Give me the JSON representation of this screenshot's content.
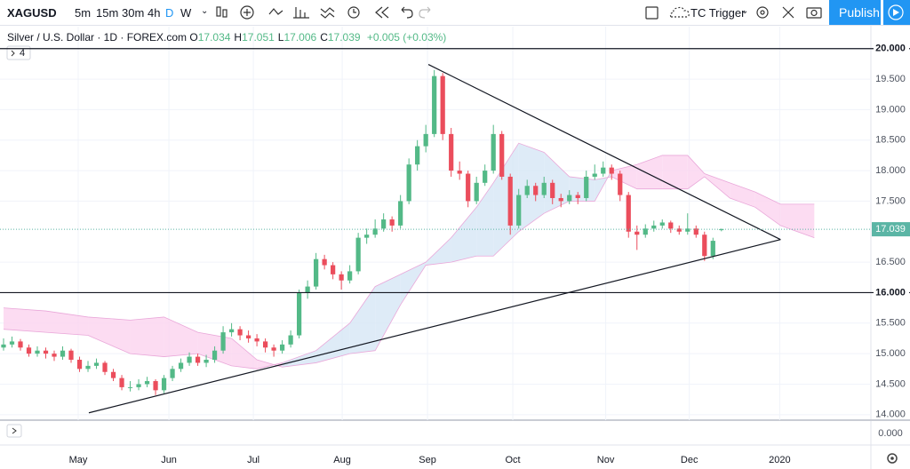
{
  "toolbar": {
    "symbol": "XAGUSD",
    "intervals": [
      "5m",
      "15m",
      "30m",
      "4h",
      "D",
      "W"
    ],
    "template": "TC Trigger",
    "publish": "Publish"
  },
  "legend": {
    "title": "Silver / U.S. Dollar · 1D · FOREX.com",
    "ohlc": [
      {
        "key": "O",
        "value": "17.034"
      },
      {
        "key": "H",
        "value": "17.051"
      },
      {
        "key": "L",
        "value": "17.006"
      },
      {
        "key": "C",
        "value": "17.039"
      }
    ],
    "change": "+0.005 (+0.03%)"
  },
  "pane_button": "4",
  "chart_data": {
    "type": "candlestick",
    "up_color": "#53b987",
    "down_color": "#eb4d5c",
    "open": [
      15.1,
      15.15,
      15.2,
      15.1,
      15.0,
      15.05,
      15.0,
      14.95,
      15.05,
      14.9,
      14.75,
      14.8,
      14.85,
      14.7,
      14.6,
      14.45,
      14.45,
      14.5,
      14.55,
      14.4,
      14.6,
      14.75,
      14.85,
      14.95,
      14.85,
      14.9,
      15.05,
      15.35,
      15.4,
      15.3,
      15.25,
      15.2,
      15.1,
      15.05,
      15.15,
      15.3,
      16.0,
      16.1,
      16.55,
      16.45,
      16.3,
      16.2,
      16.35,
      16.9,
      16.95,
      17.05,
      17.2,
      17.1,
      17.5,
      18.1,
      18.4,
      18.6,
      19.55,
      18.6,
      18.0,
      17.95,
      17.5,
      17.8,
      18.0,
      18.6,
      17.9,
      17.1,
      17.6,
      17.75,
      17.6,
      17.8,
      17.55,
      17.5,
      17.6,
      17.55,
      17.9,
      17.95,
      18.05,
      17.95,
      17.6,
      17.0,
      16.95,
      17.05,
      17.1,
      17.15,
      17.05,
      17.0,
      17.05,
      16.95,
      16.6,
      17.034
    ],
    "high": [
      15.25,
      15.28,
      15.24,
      15.15,
      15.12,
      15.1,
      15.05,
      15.12,
      15.08,
      14.95,
      14.88,
      14.92,
      14.88,
      14.75,
      14.65,
      14.55,
      14.58,
      14.62,
      14.58,
      14.65,
      14.8,
      14.92,
      15.02,
      15.0,
      14.98,
      15.12,
      15.45,
      15.5,
      15.45,
      15.38,
      15.32,
      15.25,
      15.15,
      15.22,
      15.38,
      16.05,
      16.2,
      16.65,
      16.62,
      16.5,
      16.35,
      16.45,
      16.98,
      17.05,
      17.2,
      17.3,
      17.25,
      17.6,
      18.2,
      18.5,
      18.75,
      19.65,
      19.6,
      18.7,
      18.15,
      18.0,
      17.9,
      18.1,
      18.75,
      18.65,
      17.95,
      17.7,
      17.85,
      17.8,
      17.9,
      17.85,
      17.62,
      17.68,
      17.65,
      18.0,
      18.1,
      18.15,
      18.1,
      18.0,
      17.65,
      17.1,
      17.12,
      17.18,
      17.2,
      17.18,
      17.1,
      17.3,
      17.1,
      17.0,
      16.9,
      17.051
    ],
    "low": [
      15.05,
      15.1,
      15.05,
      14.95,
      14.95,
      14.92,
      14.88,
      14.9,
      14.85,
      14.7,
      14.7,
      14.75,
      14.65,
      14.55,
      14.4,
      14.38,
      14.4,
      14.45,
      14.32,
      14.35,
      14.55,
      14.7,
      14.8,
      14.8,
      14.78,
      14.85,
      15.0,
      15.28,
      15.22,
      15.18,
      15.12,
      15.02,
      14.95,
      15.0,
      15.1,
      15.25,
      15.9,
      16.05,
      16.38,
      16.22,
      16.05,
      16.15,
      16.3,
      16.8,
      16.9,
      17.0,
      17.0,
      17.05,
      17.45,
      18.0,
      18.3,
      18.55,
      18.5,
      17.9,
      17.85,
      17.4,
      17.45,
      17.75,
      17.95,
      17.85,
      16.95,
      17.05,
      17.55,
      17.5,
      17.55,
      17.45,
      17.4,
      17.45,
      17.45,
      17.5,
      17.85,
      17.9,
      17.85,
      17.5,
      16.9,
      16.7,
      16.9,
      17.0,
      17.05,
      16.98,
      16.95,
      16.95,
      16.9,
      16.52,
      16.55,
      17.006
    ],
    "close": [
      15.15,
      15.2,
      15.1,
      15.0,
      15.05,
      15.0,
      14.95,
      15.05,
      14.9,
      14.75,
      14.8,
      14.85,
      14.7,
      14.6,
      14.45,
      14.45,
      14.5,
      14.55,
      14.4,
      14.6,
      14.75,
      14.85,
      14.95,
      14.85,
      14.9,
      15.05,
      15.35,
      15.4,
      15.3,
      15.25,
      15.2,
      15.1,
      15.05,
      15.15,
      15.3,
      16.0,
      16.1,
      16.55,
      16.45,
      16.3,
      16.2,
      16.35,
      16.9,
      16.95,
      17.05,
      17.2,
      17.1,
      17.5,
      18.1,
      18.4,
      18.6,
      19.55,
      18.6,
      18.0,
      17.95,
      17.5,
      17.8,
      18.0,
      18.6,
      17.9,
      17.1,
      17.6,
      17.75,
      17.6,
      17.8,
      17.55,
      17.5,
      17.6,
      17.55,
      17.9,
      17.95,
      18.05,
      17.95,
      17.6,
      17.0,
      16.95,
      17.05,
      17.1,
      17.15,
      17.05,
      17.0,
      17.05,
      16.95,
      16.6,
      16.85,
      17.039
    ],
    "xlim": [
      -0.42,
      102.7
    ],
    "xticks": [
      {
        "value": 8.84,
        "label": "May"
      },
      {
        "value": 19.58,
        "label": "Jun"
      },
      {
        "value": 29.58,
        "label": "Jul"
      },
      {
        "value": 40.1,
        "label": "Aug"
      },
      {
        "value": 50.2,
        "label": "Sep"
      },
      {
        "value": 60.3,
        "label": "Oct"
      },
      {
        "value": 71.3,
        "label": "Nov"
      },
      {
        "value": 81.2,
        "label": "Dec"
      },
      {
        "value": 91.9,
        "label": "2020"
      }
    ],
    "ylim": [
      13.91,
      20.36
    ],
    "yticks": [
      {
        "value": 14,
        "label": "14.000"
      },
      {
        "value": 14.5,
        "label": "14.500"
      },
      {
        "value": 15,
        "label": "15.000"
      },
      {
        "value": 15.5,
        "label": "15.500"
      },
      {
        "value": 16.5,
        "label": "16.500"
      },
      {
        "value": 17.5,
        "label": "17.500"
      },
      {
        "value": 18,
        "label": "18.000"
      },
      {
        "value": 18.5,
        "label": "18.500"
      },
      {
        "value": 19,
        "label": "19.000"
      },
      {
        "value": 19.5,
        "label": "19.500"
      }
    ],
    "grid": true,
    "grid_color": "#f0f3fa",
    "hlines": [
      {
        "value": 20,
        "label": "20.000"
      },
      {
        "value": 16,
        "label": "16.000"
      }
    ],
    "last_price": {
      "value": 17.039,
      "label": "17.039",
      "color": "#5bb5a5"
    },
    "trendlines": [
      {
        "x": [
          50.3,
          92
        ],
        "y": [
          19.74,
          16.87
        ]
      },
      {
        "x": [
          10.1,
          92
        ],
        "y": [
          14.03,
          16.87
        ]
      }
    ],
    "cloud": {
      "x": [
        0,
        5,
        10,
        15,
        19,
        23,
        27,
        30,
        33,
        37,
        41,
        44,
        47,
        50,
        53,
        56,
        58,
        61,
        64,
        67,
        70,
        72,
        75,
        78,
        81,
        83,
        86,
        89,
        92,
        96
      ],
      "span_a": [
        15.4,
        15.35,
        15.3,
        15.0,
        14.95,
        15.0,
        14.8,
        14.75,
        14.85,
        15.05,
        15.5,
        16.1,
        16.3,
        16.5,
        16.9,
        17.4,
        17.8,
        18.45,
        18.3,
        17.9,
        17.85,
        17.9,
        17.7,
        17.7,
        17.7,
        17.9,
        17.55,
        17.4,
        17.1,
        16.9
      ],
      "span_b": [
        15.75,
        15.7,
        15.6,
        15.55,
        15.6,
        15.35,
        15.25,
        14.9,
        14.78,
        14.85,
        15.0,
        15.05,
        15.8,
        16.45,
        16.5,
        16.6,
        16.6,
        17.0,
        17.3,
        17.5,
        17.5,
        18.0,
        18.1,
        18.25,
        18.25,
        17.95,
        17.8,
        17.65,
        17.45,
        17.45
      ],
      "up_color": "#d6e6f5",
      "down_color": "#fbd3ef",
      "edge_color": "#e9a7d9"
    },
    "volume_pane": {
      "tick": {
        "value": 0,
        "label": "0.000"
      }
    }
  }
}
